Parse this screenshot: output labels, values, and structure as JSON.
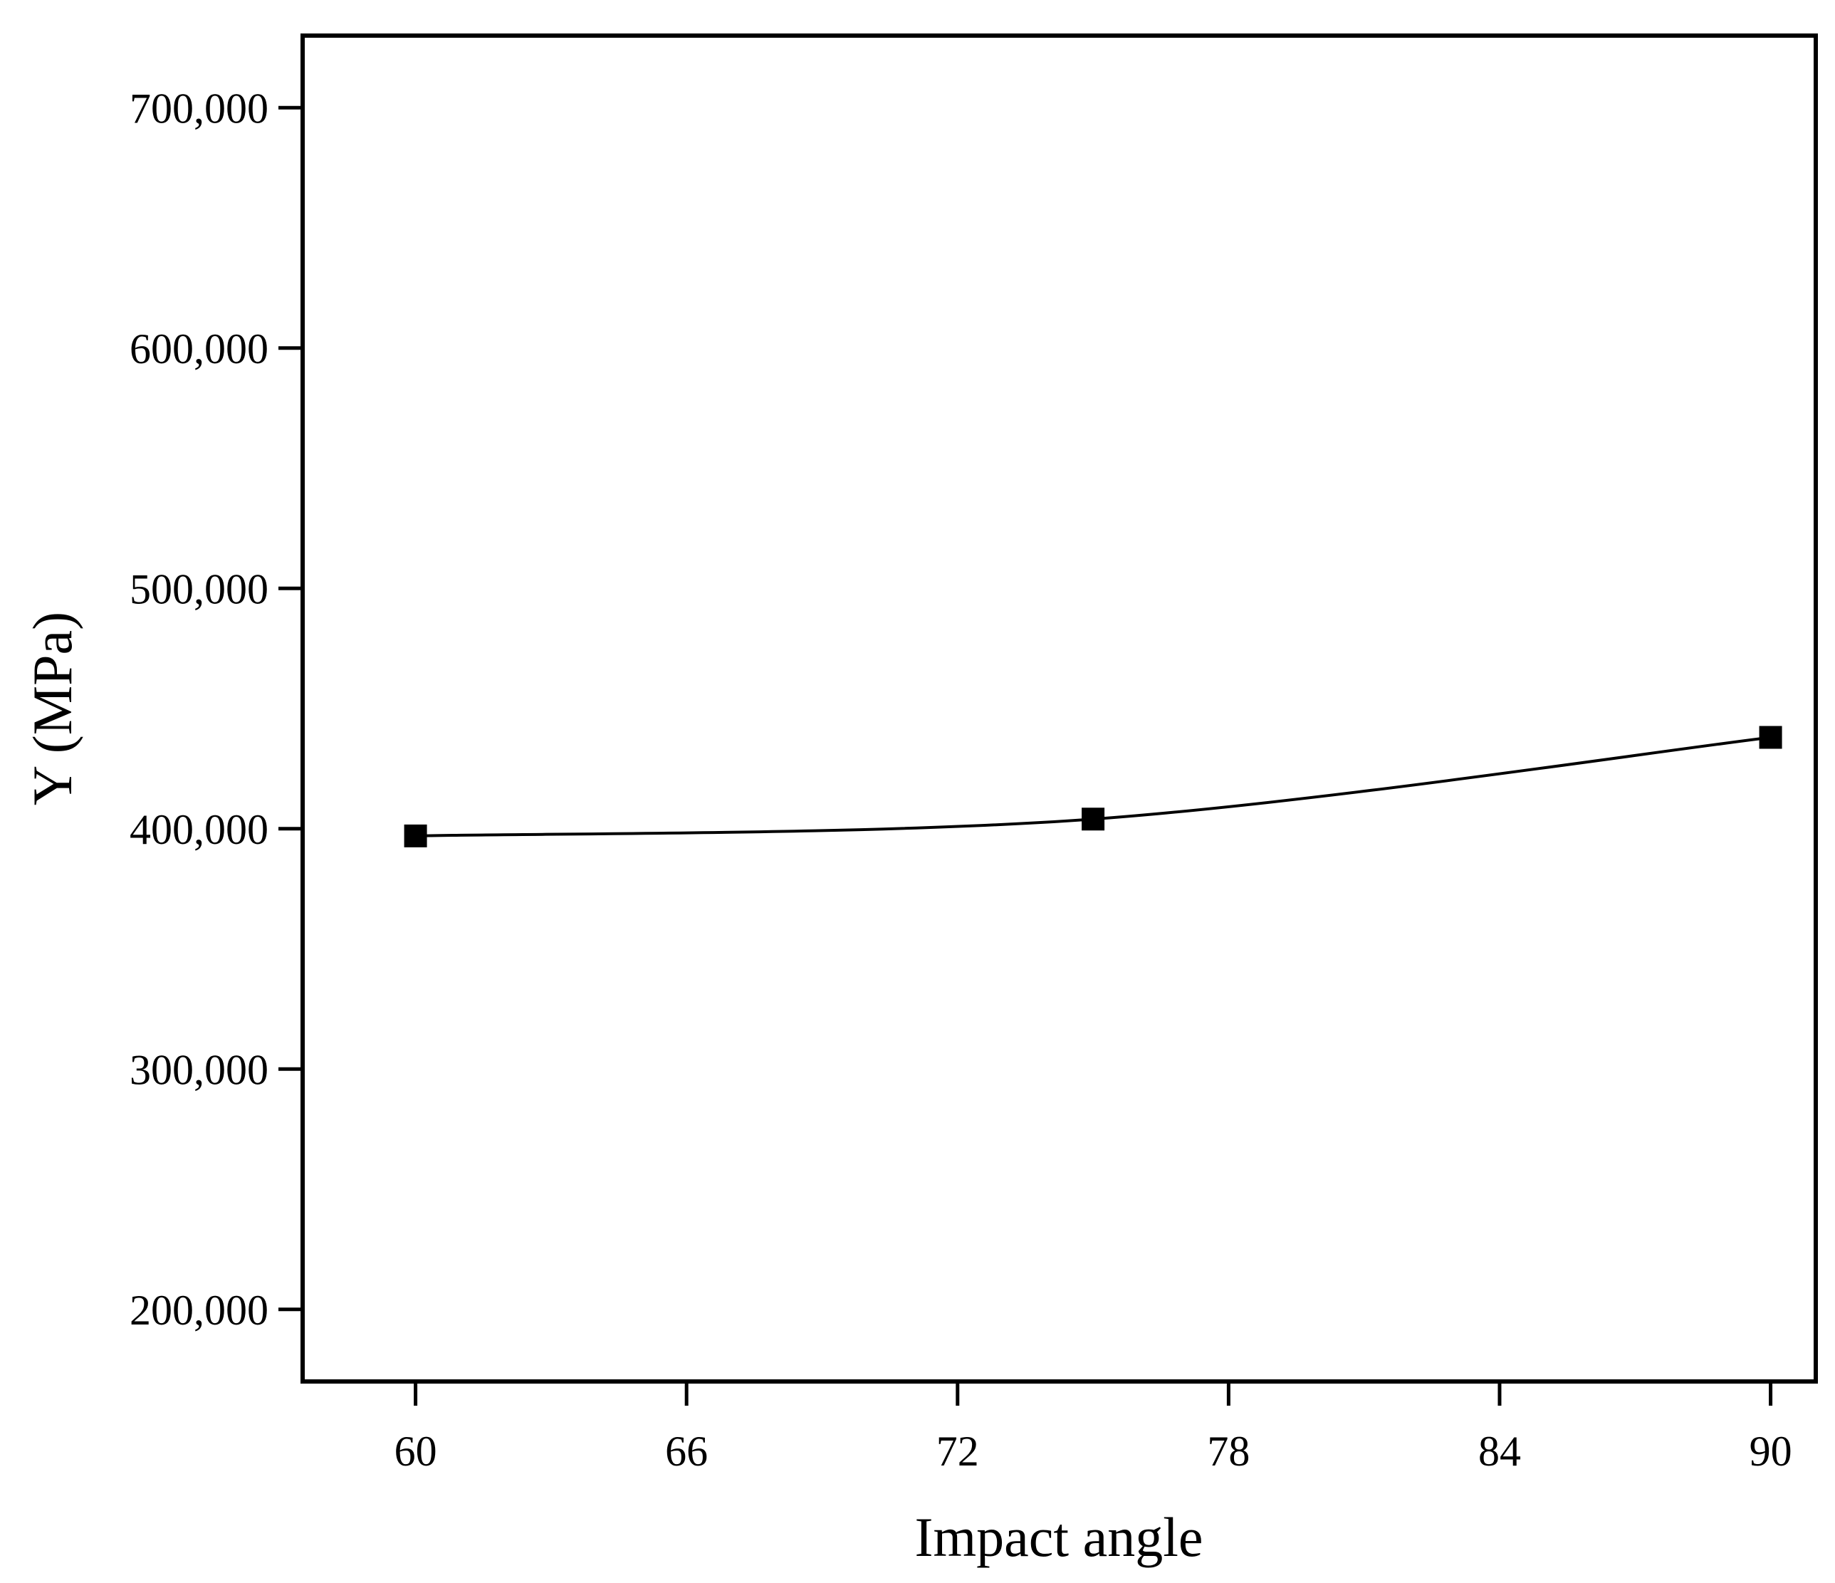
{
  "chart_data": {
    "type": "line",
    "title": "",
    "xlabel": "Impact angle",
    "ylabel": "Y (MPa)",
    "xlim": [
      57.5,
      91
    ],
    "ylim": [
      170000,
      730000
    ],
    "xticks": [
      60,
      66,
      72,
      78,
      84,
      90
    ],
    "yticks": [
      200000,
      300000,
      400000,
      500000,
      600000,
      700000
    ],
    "xtick_labels": [
      "60",
      "66",
      "72",
      "78",
      "84",
      "90"
    ],
    "ytick_labels": [
      "200,000",
      "300,000",
      "400,000",
      "500,000",
      "600,000",
      "700,000"
    ],
    "grid": false,
    "series": [
      {
        "name": "Y",
        "marker": "square",
        "line": "smooth",
        "color": "#000000",
        "x": [
          60,
          75,
          90
        ],
        "y": [
          397000,
          404000,
          438000
        ]
      }
    ]
  }
}
